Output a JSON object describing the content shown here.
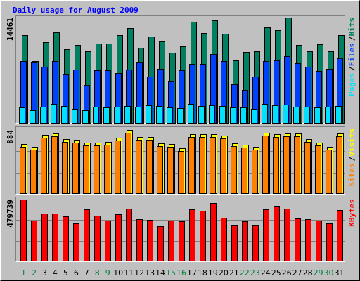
{
  "chart_data": [
    {
      "type": "bar",
      "title": "Daily usage for August 2009",
      "title_color": "#0000ff",
      "ylim": [
        0,
        14461
      ],
      "yticks": [
        14461
      ],
      "grid": true,
      "legend_separator": "/",
      "series": [
        {
          "name": "Hits",
          "color": "#008060",
          "values": [
            12067,
            8500,
            11109,
            12450,
            10150,
            10726,
            9864,
            10918,
            10918,
            12067,
            13025,
            10343,
            11875,
            11205,
            9673,
            10534,
            13886,
            12354,
            14078,
            12258,
            8619,
            9768,
            9864,
            13120,
            12737,
            14461,
            10726,
            9864,
            10822,
            9864,
            12067
          ]
        },
        {
          "name": "Files",
          "color": "#0040ff",
          "values": [
            8524,
            8428,
            7757,
            8524,
            6704,
            7374,
            5267,
            7278,
            7278,
            6895,
            7374,
            8428,
            6417,
            7470,
            5746,
            7278,
            8140,
            8140,
            9481,
            8524,
            5363,
            4597,
            6417,
            8524,
            8619,
            9194,
            8236,
            7757,
            7183,
            7470,
            8907
          ]
        },
        {
          "name": "Pages",
          "color": "#00e0ff",
          "values": [
            2203,
            1820,
            2298,
            2682,
            2394,
            2011,
            1820,
            2298,
            2203,
            2298,
            2394,
            2298,
            2490,
            2394,
            2203,
            2107,
            2682,
            2394,
            2490,
            2394,
            2203,
            2203,
            2011,
            2682,
            2490,
            2586,
            2298,
            2298,
            2203,
            2298,
            2394
          ]
        }
      ]
    },
    {
      "type": "bar",
      "ylim": [
        0,
        884
      ],
      "yticks": [
        884
      ],
      "grid": true,
      "legend_separator": "/",
      "series": [
        {
          "name": "Visits",
          "color": "#ffff00",
          "values": [
            690,
            651,
            816,
            835,
            758,
            748,
            709,
            709,
            719,
            777,
            884,
            787,
            787,
            699,
            690,
            631,
            826,
            826,
            826,
            806,
            699,
            680,
            651,
            845,
            826,
            835,
            835,
            758,
            709,
            651,
            835
          ]
        },
        {
          "name": "Sites",
          "color": "#ff8000",
          "values": [
            650,
            612,
            780,
            798,
            720,
            709,
            670,
            672,
            680,
            738,
            845,
            750,
            748,
            660,
            652,
            595,
            790,
            788,
            790,
            768,
            660,
            642,
            612,
            808,
            788,
            798,
            798,
            720,
            670,
            612,
            798
          ]
        }
      ]
    },
    {
      "type": "bar",
      "ylim": [
        0,
        479739
      ],
      "yticks": [
        479739
      ],
      "grid": true,
      "series": [
        {
          "name": "KBytes",
          "color": "#ff0000",
          "values": [
            479739,
            316200,
            370700,
            370700,
            348900,
            294400,
            403400,
            354400,
            316200,
            365300,
            408900,
            327100,
            321700,
            272600,
            316200,
            310800,
            403400,
            392500,
            452500,
            338000,
            283500,
            310800,
            283500,
            403400,
            430700,
            408900,
            332600,
            327100,
            316200,
            294400,
            398000
          ]
        }
      ],
      "categories": [
        "1",
        "2",
        "3",
        "4",
        "5",
        "6",
        "7",
        "8",
        "9",
        "10",
        "11",
        "12",
        "13",
        "14",
        "15",
        "16",
        "17",
        "18",
        "19",
        "20",
        "21",
        "22",
        "23",
        "24",
        "25",
        "26",
        "27",
        "28",
        "29",
        "30",
        "31"
      ],
      "category_colors": [
        "#008040",
        "#008040",
        "#000000",
        "#000000",
        "#000000",
        "#000000",
        "#000000",
        "#008040",
        "#008040",
        "#000000",
        "#000000",
        "#000000",
        "#000000",
        "#000000",
        "#008040",
        "#008040",
        "#000000",
        "#000000",
        "#000000",
        "#000000",
        "#000000",
        "#008040",
        "#008040",
        "#000000",
        "#000000",
        "#000000",
        "#000000",
        "#000000",
        "#008040",
        "#008040",
        "#000000"
      ]
    }
  ]
}
